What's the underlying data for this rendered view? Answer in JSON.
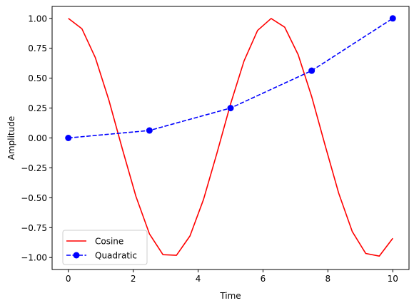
{
  "chart_data": {
    "type": "line",
    "title": "",
    "xlabel": "Time",
    "ylabel": "Amplitude",
    "xlim": [
      -0.5,
      10.5
    ],
    "ylim": [
      -1.1,
      1.1
    ],
    "xticks": [
      0,
      2,
      4,
      6,
      8,
      10
    ],
    "xtick_labels": [
      "0",
      "2",
      "4",
      "6",
      "8",
      "10"
    ],
    "yticks": [
      -1.0,
      -0.75,
      -0.5,
      -0.25,
      0.0,
      0.25,
      0.5,
      0.75,
      1.0
    ],
    "ytick_labels": [
      "−1.00",
      "−0.75",
      "−0.50",
      "−0.25",
      "0.00",
      "0.25",
      "0.50",
      "0.75",
      "1.00"
    ],
    "grid": false,
    "legend_position": "lower-left",
    "series": [
      {
        "name": "Cosine",
        "color": "#ff0000",
        "style": "solid",
        "marker": "none",
        "x": [
          0.0,
          0.417,
          0.833,
          1.25,
          1.667,
          2.083,
          2.5,
          2.917,
          3.333,
          3.75,
          4.167,
          4.583,
          5.0,
          5.417,
          5.833,
          6.25,
          6.667,
          7.083,
          7.5,
          7.917,
          8.333,
          8.75,
          9.167,
          9.583,
          10.0
        ],
        "y": [
          1.0,
          0.914,
          0.671,
          0.316,
          -0.094,
          -0.488,
          -0.802,
          -0.976,
          -0.981,
          -0.819,
          -0.514,
          -0.124,
          0.284,
          0.645,
          0.899,
          0.999,
          0.927,
          0.697,
          0.346,
          -0.064,
          -0.462,
          -0.782,
          -0.966,
          -0.988,
          -0.839
        ]
      },
      {
        "name": "Quadratic",
        "color": "#0000ff",
        "style": "dashed",
        "marker": "circle",
        "x": [
          0.0,
          2.5,
          5.0,
          7.5,
          10.0
        ],
        "y": [
          0.0,
          0.0625,
          0.25,
          0.5625,
          1.0
        ]
      }
    ]
  }
}
